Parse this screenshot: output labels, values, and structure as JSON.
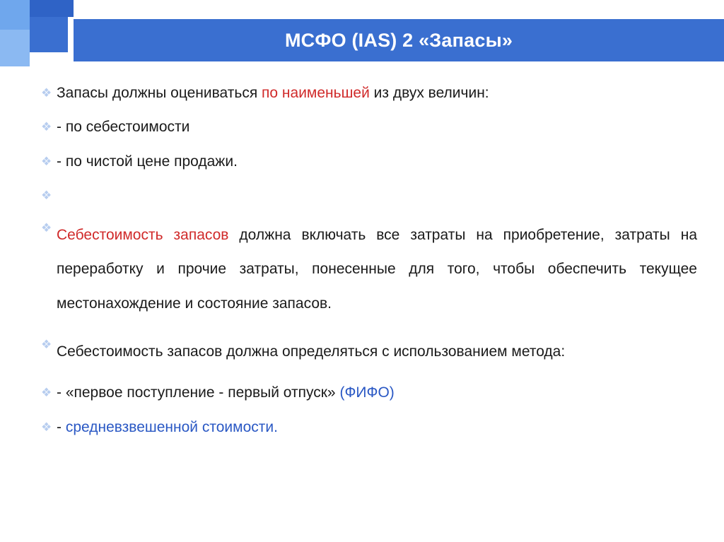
{
  "slide": {
    "title": "МСФО (IAS) 2  «Запасы»",
    "bg_color": "#ffffff",
    "header_color": "#3a6fd0",
    "header_text_color": "#ffffff",
    "header_fontsize": 27,
    "accent_squares": [
      "#6fa7ed",
      "#2f63c6",
      "#3a6fd0",
      "#8bb9f2"
    ],
    "bullet_glyph": "❖",
    "bullet_color": "#b7cdef",
    "body_fontsize": 21,
    "text_color": "#1a1a1a",
    "highlight_red": "#d02a2a",
    "highlight_blue": "#2a58c4"
  },
  "line1": {
    "a": "Запасы должны оцениваться ",
    "b": "по наименьшей",
    "c": " из двух величин:"
  },
  "line2": " - по себестоимости",
  "line3": "- по чистой цене продажи.",
  "para": {
    "a": "Себестоимость запасов",
    "b": " должна включать все затраты на приобретение, затраты на переработку и прочие затраты, понесенные для того, чтобы обеспечить текущее местонахождение и состояние запасов."
  },
  "line5": " Себестоимость запасов должна определяться  с использованием метода:",
  "line6": {
    "a": "-  «первое поступление - первый отпуск» ",
    "b": "(ФИФО)"
  },
  "line7": {
    "a": "- ",
    "b": "средневзвешенной стоимости."
  }
}
